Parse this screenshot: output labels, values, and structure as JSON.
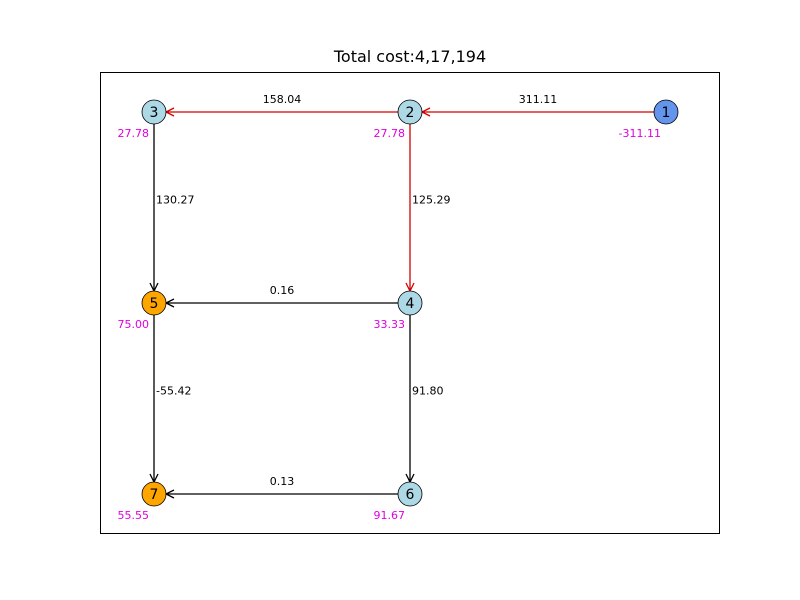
{
  "title": "Total cost:4,17,194",
  "colors": {
    "highlight_edge": "#d40000",
    "normal_edge": "#000000",
    "source_node": "#6495ed",
    "sink_node": "#ffa500",
    "normal_node": "#add8e6",
    "supply_text": "#e000e0"
  },
  "nodes": [
    {
      "id": "1",
      "label": "1",
      "supply": "-311.11",
      "kind": "source"
    },
    {
      "id": "2",
      "label": "2",
      "supply": "27.78",
      "kind": "normal"
    },
    {
      "id": "3",
      "label": "3",
      "supply": "27.78",
      "kind": "normal"
    },
    {
      "id": "4",
      "label": "4",
      "supply": "33.33",
      "kind": "normal"
    },
    {
      "id": "5",
      "label": "5",
      "supply": "75.00",
      "kind": "sink"
    },
    {
      "id": "6",
      "label": "6",
      "supply": "91.67",
      "kind": "normal"
    },
    {
      "id": "7",
      "label": "7",
      "supply": "55.55",
      "kind": "sink"
    }
  ],
  "edges": [
    {
      "from": "1",
      "to": "2",
      "flow": "311.11",
      "highlight": true
    },
    {
      "from": "2",
      "to": "3",
      "flow": "158.04",
      "highlight": true
    },
    {
      "from": "2",
      "to": "4",
      "flow": "125.29",
      "highlight": true
    },
    {
      "from": "3",
      "to": "5",
      "flow": "130.27",
      "highlight": false
    },
    {
      "from": "4",
      "to": "5",
      "flow": "0.16",
      "highlight": false
    },
    {
      "from": "5",
      "to": "7",
      "flow": "-55.42",
      "highlight": false
    },
    {
      "from": "4",
      "to": "6",
      "flow": "91.80",
      "highlight": false
    },
    {
      "from": "6",
      "to": "7",
      "flow": "0.13",
      "highlight": false
    }
  ]
}
